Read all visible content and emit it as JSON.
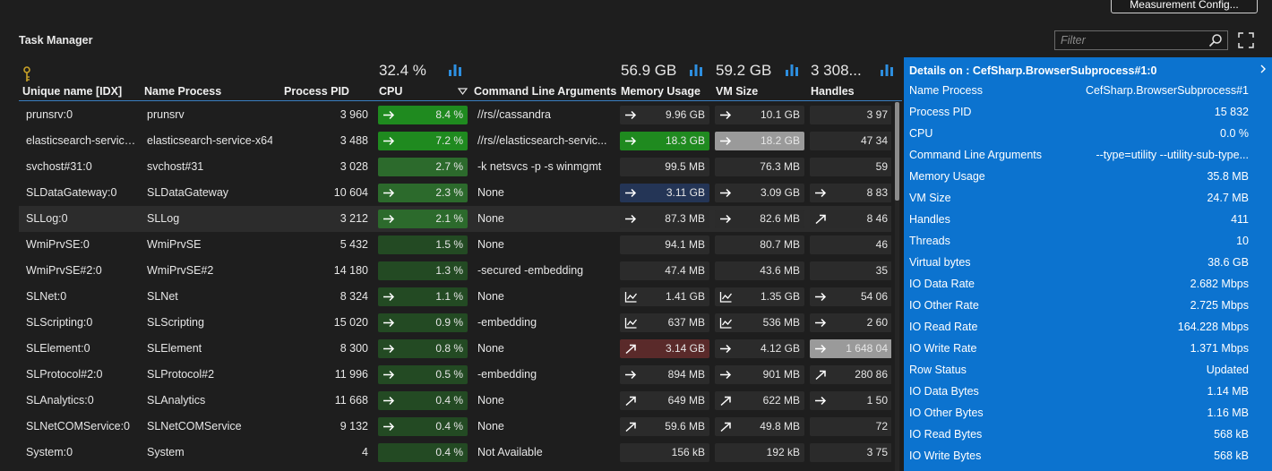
{
  "header": {
    "config_button": "Measurement Config...",
    "title": "Task Manager",
    "filter_placeholder": "Filter"
  },
  "aggregates": {
    "cpu": "32.4 %",
    "memory": "56.9 GB",
    "vm": "59.2 GB",
    "handles": "3 308..."
  },
  "columns": [
    "Unique name [IDX]",
    "Name Process",
    "Process PID",
    "CPU",
    "Command Line Arguments",
    "Memory Usage",
    "VM Size",
    "Handles"
  ],
  "colors": {
    "accent": "#0c73cf",
    "green_bright": "#1f8a1f",
    "green_mid": "#2c6a2c",
    "green_dark": "#234a23",
    "blue_bar": "#243556",
    "red_bar": "#5a2a2a",
    "grey_bar": "#9a9a9a"
  },
  "rows": [
    {
      "name": "prunsrv:0",
      "proc": "prunsrv",
      "pid": "3 960",
      "cpu": "8.4 %",
      "cpu_icon": "arrow-right-icon",
      "args": "//rs//cassandra",
      "mem": "9.96 GB",
      "mem_icon": "arrow-right-icon",
      "vm": "10.1 GB",
      "vm_icon": "arrow-right-icon",
      "hnd": "3 97"
    },
    {
      "name": "elasticsearch-service...",
      "proc": "elasticsearch-service-x64",
      "pid": "3 488",
      "cpu": "7.2 %",
      "cpu_icon": "arrow-right-icon",
      "args": "//rs//elasticsearch-servic...",
      "mem": "18.3 GB",
      "mem_icon": "arrow-right-icon",
      "vm": "18.2 GB",
      "vm_icon": "arrow-right-icon",
      "hnd": "47 34"
    },
    {
      "name": "svchost#31:0",
      "proc": "svchost#31",
      "pid": "3 028",
      "cpu": "2.7 %",
      "cpu_icon": "",
      "args": "-k netsvcs -p -s winmgmt",
      "mem": "99.5 MB",
      "mem_icon": "",
      "vm": "76.3 MB",
      "vm_icon": "",
      "hnd": "59"
    },
    {
      "name": "SLDataGateway:0",
      "proc": "SLDataGateway",
      "pid": "10 604",
      "cpu": "2.3 %",
      "cpu_icon": "arrow-right-icon",
      "args": "None",
      "mem": "3.11 GB",
      "mem_icon": "arrow-right-icon",
      "vm": "3.09 GB",
      "vm_icon": "arrow-right-icon",
      "hnd": "8 83",
      "hnd_icon": "arrow-right-icon"
    },
    {
      "name": "SLLog:0",
      "proc": "SLLog",
      "pid": "3 212",
      "cpu": "2.1 %",
      "cpu_icon": "arrow-right-icon",
      "args": "None",
      "mem": "87.3 MB",
      "mem_icon": "arrow-right-icon",
      "vm": "82.6 MB",
      "vm_icon": "arrow-right-icon",
      "hnd": "8 46",
      "hnd_icon": "arrow-up-right-icon"
    },
    {
      "name": "WmiPrvSE:0",
      "proc": "WmiPrvSE",
      "pid": "5 432",
      "cpu": "1.5 %",
      "cpu_icon": "",
      "args": "None",
      "mem": "94.1 MB",
      "mem_icon": "",
      "vm": "80.7 MB",
      "vm_icon": "",
      "hnd": "46"
    },
    {
      "name": "WmiPrvSE#2:0",
      "proc": "WmiPrvSE#2",
      "pid": "14 180",
      "cpu": "1.3 %",
      "cpu_icon": "",
      "args": " -secured -embedding",
      "mem": "47.4 MB",
      "mem_icon": "",
      "vm": "43.6 MB",
      "vm_icon": "",
      "hnd": "35"
    },
    {
      "name": "SLNet:0",
      "proc": "SLNet",
      "pid": "8 324",
      "cpu": "1.1 %",
      "cpu_icon": "arrow-right-icon",
      "args": "None",
      "mem": "1.41 GB",
      "mem_icon": "trend-chart-icon",
      "vm": "1.35 GB",
      "vm_icon": "trend-chart-icon",
      "hnd": "54 06",
      "hnd_icon": "arrow-right-icon"
    },
    {
      "name": "SLScripting:0",
      "proc": "SLScripting",
      "pid": "15 020",
      "cpu": "0.9 %",
      "cpu_icon": "arrow-right-icon",
      "args": " -embedding",
      "mem": "637 MB",
      "mem_icon": "trend-chart-icon",
      "vm": "536 MB",
      "vm_icon": "trend-chart-icon",
      "hnd": "2 60",
      "hnd_icon": "arrow-right-icon"
    },
    {
      "name": "SLElement:0",
      "proc": "SLElement",
      "pid": "8 300",
      "cpu": "0.8 %",
      "cpu_icon": "arrow-right-icon",
      "args": "None",
      "mem": "3.14 GB",
      "mem_icon": "arrow-up-right-icon",
      "vm": "4.12 GB",
      "vm_icon": "arrow-right-icon",
      "hnd": "1 648 04",
      "hnd_icon": "arrow-right-icon"
    },
    {
      "name": "SLProtocol#2:0",
      "proc": "SLProtocol#2",
      "pid": "11 996",
      "cpu": "0.5 %",
      "cpu_icon": "arrow-right-icon",
      "args": " -embedding",
      "mem": "894 MB",
      "mem_icon": "arrow-right-icon",
      "vm": "901 MB",
      "vm_icon": "arrow-right-icon",
      "hnd": "280 86",
      "hnd_icon": "arrow-up-right-icon"
    },
    {
      "name": "SLAnalytics:0",
      "proc": "SLAnalytics",
      "pid": "11 668",
      "cpu": "0.4 %",
      "cpu_icon": "arrow-right-icon",
      "args": "None",
      "mem": "649 MB",
      "mem_icon": "arrow-up-right-icon",
      "vm": "622 MB",
      "vm_icon": "arrow-up-right-icon",
      "hnd": "1 50",
      "hnd_icon": "arrow-right-icon"
    },
    {
      "name": "SLNetCOMService:0",
      "proc": "SLNetCOMService",
      "pid": "9 132",
      "cpu": "0.4 %",
      "cpu_icon": "arrow-right-icon",
      "args": "None",
      "mem": "59.6 MB",
      "mem_icon": "arrow-up-right-icon",
      "vm": "49.8 MB",
      "vm_icon": "arrow-up-right-icon",
      "hnd": "72"
    },
    {
      "name": "System:0",
      "proc": "System",
      "pid": "4",
      "cpu": "0.4 %",
      "cpu_icon": "",
      "args": "Not Available",
      "mem": "156 kB",
      "mem_icon": "",
      "vm": "192 kB",
      "vm_icon": "",
      "hnd": "3 75"
    }
  ],
  "details": {
    "title": "Details on : CefSharp.BrowserSubprocess#1:0",
    "fields": [
      {
        "k": "Name Process",
        "v": "CefSharp.BrowserSubprocess#1"
      },
      {
        "k": "Process PID",
        "v": "15 832"
      },
      {
        "k": "CPU",
        "v": "0.0 %"
      },
      {
        "k": "Command Line Arguments",
        "v": "--type=utility --utility-sub-type..."
      },
      {
        "k": "Memory Usage",
        "v": "35.8 MB"
      },
      {
        "k": "VM Size",
        "v": "24.7 MB"
      },
      {
        "k": "Handles",
        "v": "411"
      },
      {
        "k": "Threads",
        "v": "10"
      },
      {
        "k": "Virtual bytes",
        "v": "38.6 GB"
      },
      {
        "k": "IO Data Rate",
        "v": "2.682 Mbps"
      },
      {
        "k": "IO Other Rate",
        "v": "2.725 Mbps"
      },
      {
        "k": "IO Read Rate",
        "v": "164.228 Mbps"
      },
      {
        "k": "IO Write Rate",
        "v": "1.371 Mbps"
      },
      {
        "k": "Row Status",
        "v": "Updated"
      },
      {
        "k": "IO Data Bytes",
        "v": "1.14 MB"
      },
      {
        "k": "IO Other Bytes",
        "v": "1.16 MB"
      },
      {
        "k": "IO Read Bytes",
        "v": "568 kB"
      },
      {
        "k": "IO Write Bytes",
        "v": "568 kB"
      }
    ]
  }
}
